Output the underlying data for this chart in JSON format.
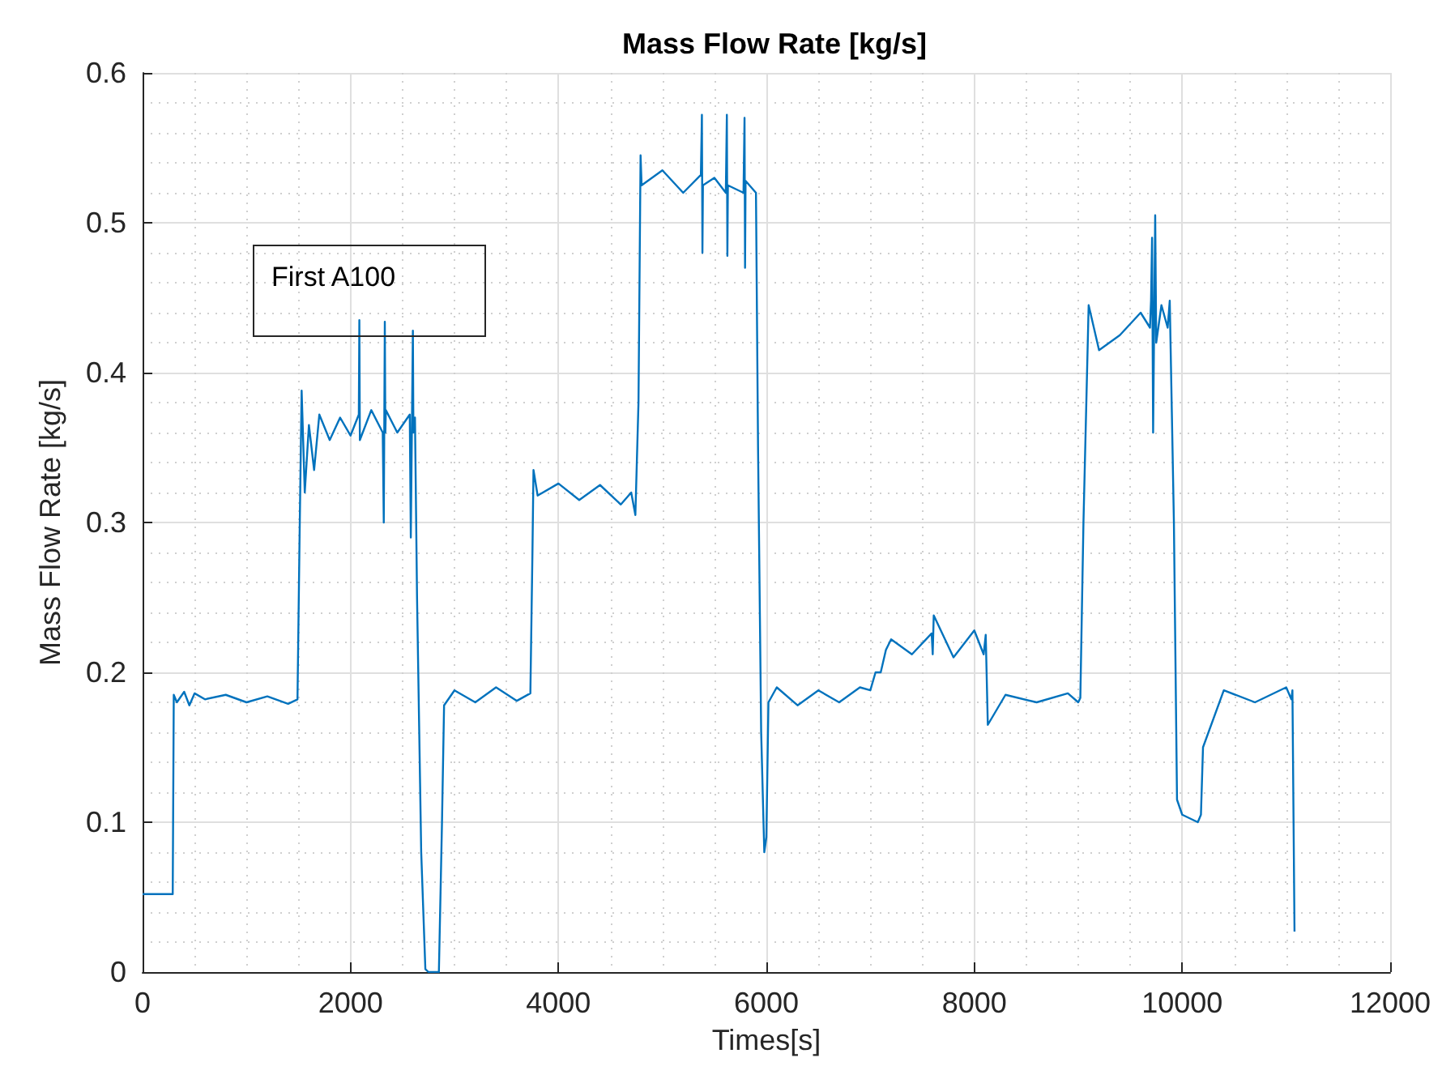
{
  "chart_data": {
    "type": "line",
    "title": "Mass Flow Rate [kg/s]",
    "xlabel": "Times[s]",
    "ylabel": "Mass Flow Rate [kg/s]",
    "annotations": [
      "First A100"
    ],
    "x": [
      0,
      290,
      300,
      330,
      400,
      450,
      500,
      600,
      800,
      1000,
      1200,
      1400,
      1490,
      1510,
      1530,
      1560,
      1600,
      1650,
      1700,
      1800,
      1900,
      2000,
      2080,
      2085,
      2090,
      2200,
      2310,
      2320,
      2330,
      2335,
      2340,
      2450,
      2570,
      2580,
      2600,
      2605,
      2620,
      2640,
      2680,
      2720,
      2750,
      2850,
      2880,
      2900,
      3000,
      3200,
      3400,
      3600,
      3730,
      3750,
      3760,
      3800,
      4000,
      4200,
      4400,
      4600,
      4700,
      4740,
      4770,
      4790,
      4800,
      5000,
      5200,
      5370,
      5380,
      5385,
      5390,
      5500,
      5610,
      5620,
      5625,
      5630,
      5780,
      5790,
      5795,
      5800,
      5900,
      5920,
      5950,
      5980,
      6000,
      6020,
      6100,
      6300,
      6500,
      6700,
      6900,
      7000,
      7050,
      7100,
      7150,
      7200,
      7400,
      7590,
      7600,
      7610,
      7800,
      8000,
      8090,
      8110,
      8130,
      8300,
      8600,
      8900,
      9000,
      9020,
      9050,
      9100,
      9200,
      9400,
      9600,
      9690,
      9700,
      9710,
      9720,
      9740,
      9750,
      9800,
      9860,
      9880,
      9920,
      9950,
      10000,
      10150,
      10180,
      10200,
      10400,
      10700,
      11000,
      11050,
      11060,
      11080
    ],
    "values": [
      0.052,
      0.052,
      0.185,
      0.18,
      0.187,
      0.178,
      0.186,
      0.182,
      0.185,
      0.18,
      0.184,
      0.179,
      0.182,
      0.29,
      0.388,
      0.32,
      0.365,
      0.335,
      0.372,
      0.355,
      0.37,
      0.358,
      0.372,
      0.435,
      0.355,
      0.375,
      0.36,
      0.3,
      0.434,
      0.36,
      0.375,
      0.36,
      0.372,
      0.29,
      0.428,
      0.36,
      0.37,
      0.25,
      0.08,
      0.002,
      0.0,
      0.0,
      0.1,
      0.178,
      0.188,
      0.18,
      0.19,
      0.181,
      0.186,
      0.28,
      0.335,
      0.318,
      0.326,
      0.315,
      0.325,
      0.312,
      0.32,
      0.305,
      0.38,
      0.545,
      0.525,
      0.535,
      0.52,
      0.532,
      0.572,
      0.48,
      0.525,
      0.53,
      0.52,
      0.572,
      0.478,
      0.525,
      0.52,
      0.57,
      0.47,
      0.528,
      0.52,
      0.35,
      0.16,
      0.08,
      0.09,
      0.18,
      0.19,
      0.178,
      0.188,
      0.18,
      0.19,
      0.188,
      0.2,
      0.2,
      0.215,
      0.222,
      0.212,
      0.226,
      0.212,
      0.238,
      0.21,
      0.228,
      0.212,
      0.225,
      0.165,
      0.185,
      0.18,
      0.186,
      0.18,
      0.183,
      0.3,
      0.445,
      0.415,
      0.425,
      0.44,
      0.43,
      0.448,
      0.49,
      0.36,
      0.505,
      0.42,
      0.445,
      0.43,
      0.448,
      0.3,
      0.115,
      0.105,
      0.1,
      0.105,
      0.15,
      0.188,
      0.18,
      0.19,
      0.182,
      0.188,
      0.027
    ],
    "color": "#0072bd",
    "xlim": [
      0,
      12000
    ],
    "xticks": [
      0,
      2000,
      4000,
      6000,
      8000,
      10000,
      12000
    ],
    "ylim": [
      0,
      0.6
    ],
    "yticks": [
      0,
      0.1,
      0.2,
      0.3,
      0.4,
      0.5,
      0.6
    ],
    "grid": true,
    "marker": "none",
    "line_style": "solid"
  }
}
